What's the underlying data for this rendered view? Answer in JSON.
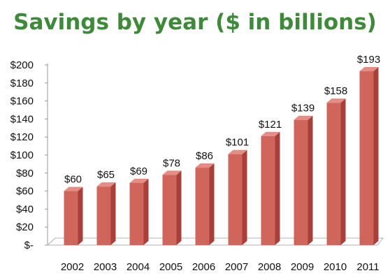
{
  "chart_data": {
    "type": "bar",
    "title": "Savings by year ($ in billions)",
    "categories": [
      "2002",
      "2003",
      "2004",
      "2005",
      "2006",
      "2007",
      "2008",
      "2009",
      "2010",
      "2011"
    ],
    "values": [
      60,
      65,
      69,
      78,
      86,
      101,
      121,
      139,
      158,
      193
    ],
    "data_labels": [
      "$60",
      "$65",
      "$69",
      "$78",
      "$86",
      "$101",
      "$121",
      "$139",
      "$158",
      "$193"
    ],
    "ylim": [
      0,
      200
    ],
    "y_ticks": [
      0,
      20,
      40,
      60,
      80,
      100,
      120,
      140,
      160,
      180,
      200
    ],
    "y_tick_labels": [
      "$-",
      "$20",
      "$40",
      "$60",
      "$80",
      "$100",
      "$120",
      "$140",
      "$160",
      "$180",
      "$200"
    ],
    "grid": false,
    "legend": "none",
    "style": "3d",
    "colors": {
      "bar_front": "#d0655c",
      "bar_side": "#a8403a",
      "bar_top": "#e58d85",
      "title": "#3f8a3a"
    }
  }
}
